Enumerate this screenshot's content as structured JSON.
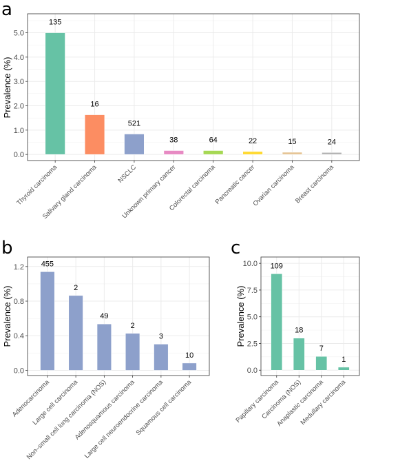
{
  "chart_data": [
    {
      "panel": "a",
      "type": "bar",
      "ylabel": "Prevalence (%)",
      "ylim": [
        -0.25,
        5.78
      ],
      "yticks": [
        0,
        1,
        2,
        3,
        4,
        5
      ],
      "ytick_labels": [
        "0.0",
        "1.0",
        "2.0",
        "3.0",
        "4.0",
        "5.0"
      ],
      "grid": true,
      "categories": [
        "Thyroid carcinoma",
        "Salivary gland carcinoma",
        "NSCLC",
        "Unknown primary cancer",
        "Colorectal carcinoma",
        "Pancreatic cancer",
        "Ovarian carcinoma",
        "Breast carcinoma"
      ],
      "values": [
        5.0,
        1.63,
        0.84,
        0.16,
        0.16,
        0.12,
        0.09,
        0.08
      ],
      "data_labels": [
        "135",
        "16",
        "521",
        "38",
        "64",
        "22",
        "15",
        "24"
      ],
      "colors": [
        "#66C2A5",
        "#FC8D62",
        "#8DA0CB",
        "#E78AC3",
        "#A6D854",
        "#FFD92F",
        "#E5C494",
        "#B3B3B3"
      ]
    },
    {
      "panel": "b",
      "type": "bar",
      "ylabel": "Prevalence (%)",
      "ylim": [
        -0.06,
        1.31
      ],
      "yticks": [
        0,
        0.4,
        0.8,
        1.2
      ],
      "ytick_labels": [
        "0.0",
        "0.4",
        "0.8",
        "1.2"
      ],
      "grid": true,
      "categories": [
        "Adenocarcinoma",
        "Large cell carcinoma",
        "Non–small cell lung carcinoma (NOS)",
        "Adenosquamous carcinoma",
        "Large cell neuroendocrine carcinoma",
        "Squamous cell carcinoma"
      ],
      "values": [
        1.14,
        0.865,
        0.536,
        0.427,
        0.303,
        0.084
      ],
      "data_labels": [
        "455",
        "2",
        "49",
        "2",
        "3",
        "10"
      ],
      "colors": [
        "#8DA0CB"
      ]
    },
    {
      "panel": "c",
      "type": "bar",
      "ylabel": "Prevalence (%)",
      "ylim": [
        -0.5,
        10.59
      ],
      "yticks": [
        0,
        2.5,
        5,
        7.5,
        10
      ],
      "ytick_labels": [
        "0.0",
        "2.5",
        "5.0",
        "7.5",
        "10.0"
      ],
      "grid": true,
      "categories": [
        "Papillary carcinoma",
        "Carcinoma (NOS)",
        "Anaplastic carcinoma",
        "Medullary carcinoma"
      ],
      "values": [
        9.02,
        3.0,
        1.29,
        0.28
      ],
      "data_labels": [
        "109",
        "18",
        "7",
        "1"
      ],
      "colors": [
        "#66C2A5"
      ]
    }
  ]
}
